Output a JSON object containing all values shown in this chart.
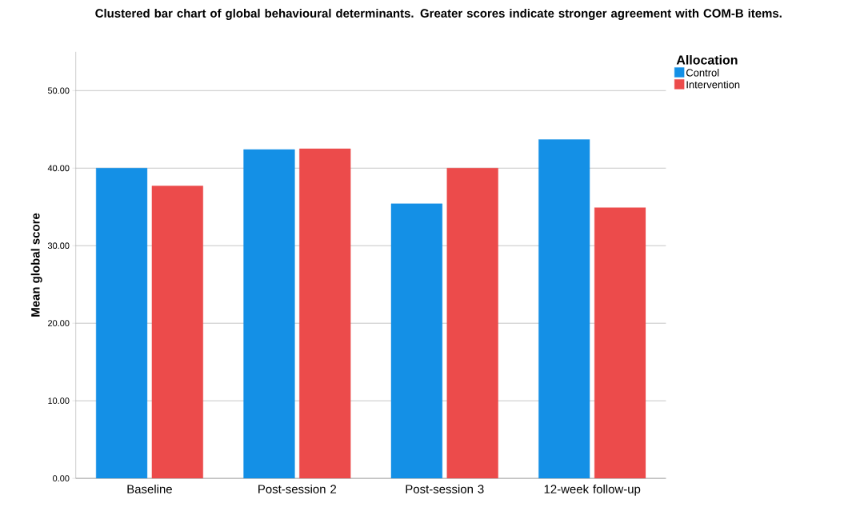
{
  "chart_data": {
    "type": "bar",
    "title": "Clustered bar chart of global behavioural determinants. Greater scores indicate stronger agreement with COM-B items.",
    "ylabel": "Mean global score",
    "legend_title": "Allocation",
    "categories": [
      "Baseline",
      "Post-session 2",
      "Post-session 3",
      "12-week follow-up"
    ],
    "series": [
      {
        "name": "Control",
        "color": "#1490e6",
        "values": [
          40.0,
          42.4,
          35.4,
          43.7
        ]
      },
      {
        "name": "Intervention",
        "color": "#ec4b4b",
        "values": [
          37.7,
          42.5,
          40.0,
          34.9
        ]
      }
    ],
    "ylim": [
      0,
      55
    ],
    "yticks": [
      {
        "value": 0,
        "label": "0.00"
      },
      {
        "value": 10,
        "label": "10.00"
      },
      {
        "value": 20,
        "label": "20.00"
      },
      {
        "value": 30,
        "label": "30.00"
      },
      {
        "value": 40,
        "label": "40.00"
      },
      {
        "value": 50,
        "label": "50.00"
      }
    ],
    "grid": "y",
    "legend": "top right"
  }
}
